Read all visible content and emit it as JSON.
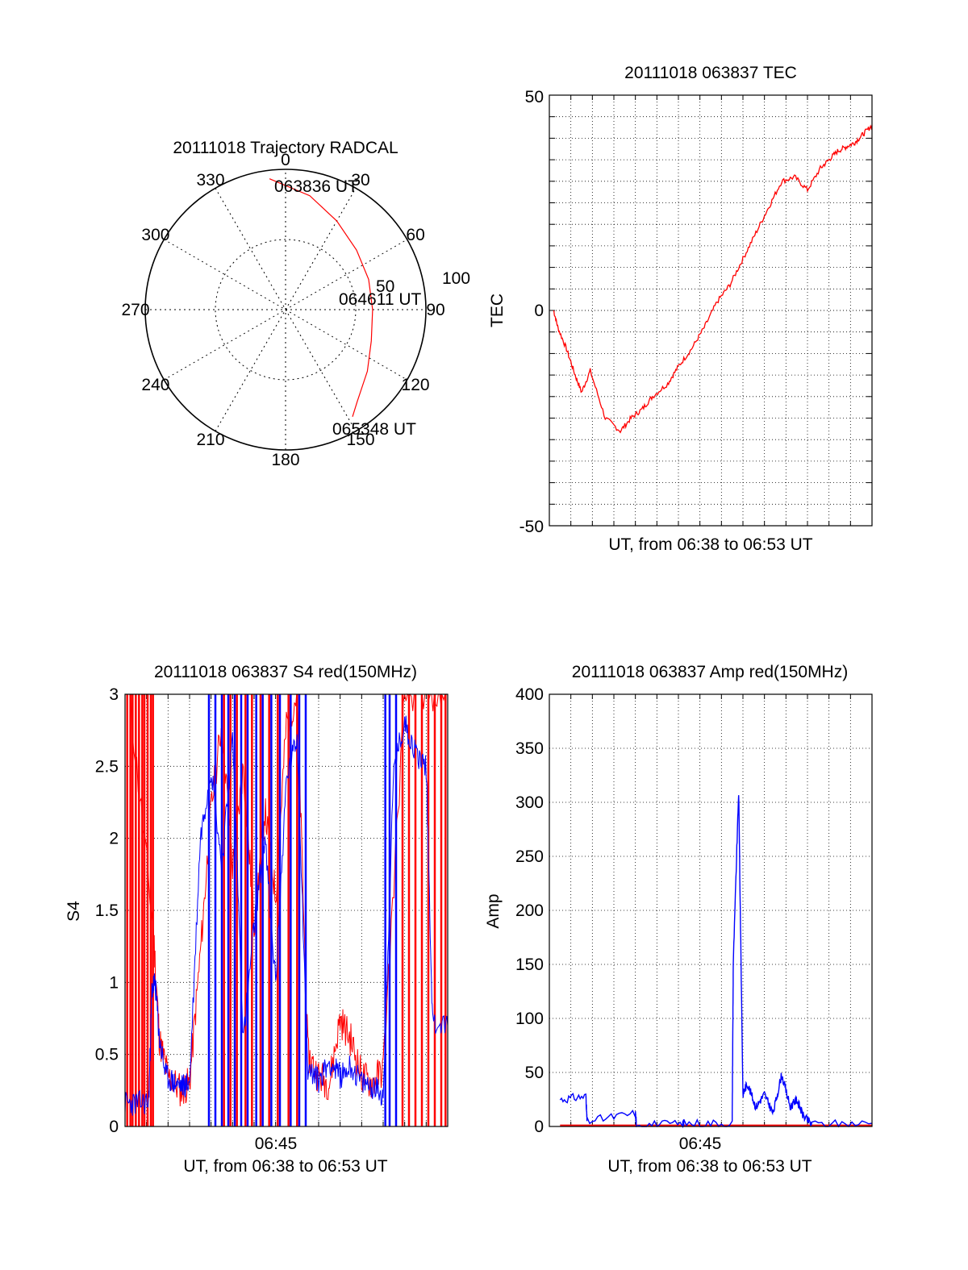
{
  "colors": {
    "red": "#ff0000",
    "blue": "#0000ff",
    "axis": "#000000",
    "grid": "#000000"
  },
  "chart_data": [
    {
      "id": "trajectory",
      "type": "scatter",
      "subtype": "polar",
      "title": "20111018 Trajectory RADCAL",
      "azimuth_labels": [
        "0",
        "30",
        "60",
        "90",
        "120",
        "150",
        "180",
        "210",
        "240",
        "270",
        "300",
        "330"
      ],
      "ring_labels": [
        "50",
        "100"
      ],
      "grid": true,
      "series": [
        {
          "color": "#ff0000",
          "points": [
            {
              "az": 353,
              "el": 94
            },
            {
              "az": 12,
              "el": 83
            },
            {
              "az": 30,
              "el": 73
            },
            {
              "az": 50,
              "el": 66
            },
            {
              "az": 70,
              "el": 63
            },
            {
              "az": 90,
              "el": 62
            },
            {
              "az": 110,
              "el": 65
            },
            {
              "az": 127,
              "el": 73
            },
            {
              "az": 142,
              "el": 83
            },
            {
              "az": 148,
              "el": 90
            }
          ]
        }
      ],
      "annotations": [
        "063836 UT",
        "064611 UT",
        "065348 UT"
      ]
    },
    {
      "id": "tec",
      "type": "line",
      "title": "20111018 063837 TEC",
      "xlabel": "UT, from 06:38 to 06:53 UT",
      "ylabel": "TEC",
      "xlim": [
        0,
        15
      ],
      "ylim": [
        -50,
        50
      ],
      "yticks": [
        "-50",
        "0",
        "50"
      ],
      "grid": true,
      "series": [
        {
          "color": "#ff0000",
          "x": [
            0.2,
            0.4,
            0.8,
            1.2,
            1.5,
            1.9,
            2.6,
            3.3,
            3.8,
            4.3,
            4.8,
            5.5,
            6.0,
            6.6,
            7.2,
            7.8,
            8.4,
            9.0,
            9.6,
            10.2,
            10.8,
            11.4,
            12.0,
            12.6,
            13.0,
            13.4,
            13.8,
            14.2,
            14.6,
            15.0
          ],
          "y": [
            0,
            -4,
            -9,
            -15,
            -19,
            -14,
            -25,
            -28,
            -25,
            -23,
            -20,
            -17,
            -13,
            -9,
            -4,
            2,
            6,
            12,
            18,
            24,
            30,
            31,
            28,
            33,
            35,
            37,
            38,
            39,
            41,
            43
          ]
        }
      ]
    },
    {
      "id": "s4",
      "type": "line",
      "title": "20111018 063837 S4 red(150MHz)",
      "xlabel": "UT, from 06:38 to 06:53 UT",
      "ylabel": "S4",
      "xlim": [
        0,
        15
      ],
      "ylim": [
        0,
        3
      ],
      "xticks": [
        {
          "x": 7,
          "label": "06:45"
        }
      ],
      "yticks": [
        "0",
        "0.5",
        "1",
        "1.5",
        "2",
        "2.5",
        "3"
      ],
      "grid": true,
      "series": [
        {
          "color": "#ff0000",
          "baseline_x": [
            0.2,
            1.3,
            1.6,
            2.0,
            2.6,
            3.0,
            3.5,
            4.0,
            4.5,
            5.0,
            5.5,
            6.0,
            6.5,
            7.0,
            7.5,
            8.0,
            8.5,
            9.0,
            9.5,
            10.0,
            10.5,
            11.0,
            11.5,
            12.0,
            13.0,
            14.0,
            15.0
          ],
          "baseline_y": [
            3.0,
            1.4,
            0.6,
            0.35,
            0.25,
            0.3,
            1.2,
            2.2,
            2.8,
            1.8,
            2.5,
            1.4,
            2.2,
            1.6,
            2.8,
            3.0,
            0.5,
            0.35,
            0.3,
            0.75,
            0.6,
            0.35,
            0.3,
            0.4,
            3.0,
            3.0,
            3.0
          ],
          "spike_x": [
            0.1,
            0.25,
            0.35,
            0.5,
            0.65,
            0.8,
            0.9,
            1.05,
            1.2,
            1.3,
            4.6,
            4.9,
            5.2,
            5.6,
            5.9,
            6.3,
            6.7,
            7.1,
            7.6,
            8.0,
            12.9,
            13.2,
            13.5,
            13.8,
            14.1,
            14.4,
            14.7,
            14.9
          ],
          "spike_top": 3.0
        },
        {
          "color": "#0000ff",
          "baseline_x": [
            0,
            0.5,
            1.1,
            1.25,
            1.4,
            1.6,
            1.9,
            2.3,
            2.7,
            3.0,
            3.5,
            4.0,
            4.5,
            5.0,
            5.5,
            6.0,
            6.5,
            7.0,
            7.5,
            8.0,
            8.5,
            9.0,
            9.5,
            10.0,
            10.5,
            11.0,
            11.5,
            12.0,
            12.5,
            13.0,
            13.5,
            14.0,
            14.3,
            15.0
          ],
          "baseline_y": [
            0.16,
            0.16,
            0.17,
            0.95,
            1.0,
            0.6,
            0.35,
            0.3,
            0.28,
            0.3,
            2.0,
            2.5,
            1.8,
            2.7,
            0.6,
            1.4,
            2.0,
            1.0,
            2.4,
            2.7,
            0.4,
            0.32,
            0.45,
            0.35,
            0.42,
            0.3,
            0.28,
            0.22,
            2.5,
            2.8,
            2.6,
            2.5,
            0.72,
            0.7
          ],
          "spike_x": [
            3.9,
            4.2,
            4.5,
            4.8,
            5.1,
            5.4,
            5.7,
            6.1,
            6.4,
            6.8,
            7.2,
            7.7,
            8.1,
            8.4,
            12.1,
            12.3,
            12.6
          ],
          "spike_top": 3.0
        }
      ]
    },
    {
      "id": "amp",
      "type": "line",
      "title": "20111018 063837 Amp red(150MHz)",
      "xlabel": "UT, from 06:38 to 06:53 UT",
      "ylabel": "Amp",
      "xlim": [
        0,
        15
      ],
      "ylim": [
        0,
        400
      ],
      "xticks": [
        {
          "x": 7,
          "label": "06:45"
        }
      ],
      "yticks": [
        "0",
        "50",
        "100",
        "150",
        "200",
        "250",
        "300",
        "350",
        "400"
      ],
      "grid": true,
      "series": [
        {
          "color": "#0000ff",
          "x": [
            0.5,
            1.7,
            1.75,
            4.0,
            4.05,
            6.2,
            6.25,
            8.5,
            8.55,
            8.8,
            9.0,
            9.2,
            9.6,
            10.0,
            10.4,
            10.8,
            11.2,
            11.5,
            11.8,
            12.2,
            15.0
          ],
          "y": [
            25,
            28,
            5,
            12,
            2,
            2,
            3,
            3,
            150,
            310,
            30,
            40,
            18,
            30,
            12,
            48,
            18,
            25,
            10,
            2,
            3
          ]
        },
        {
          "color": "#ff0000",
          "x": [
            0.5,
            15.0
          ],
          "y": [
            1,
            1
          ]
        }
      ]
    }
  ]
}
